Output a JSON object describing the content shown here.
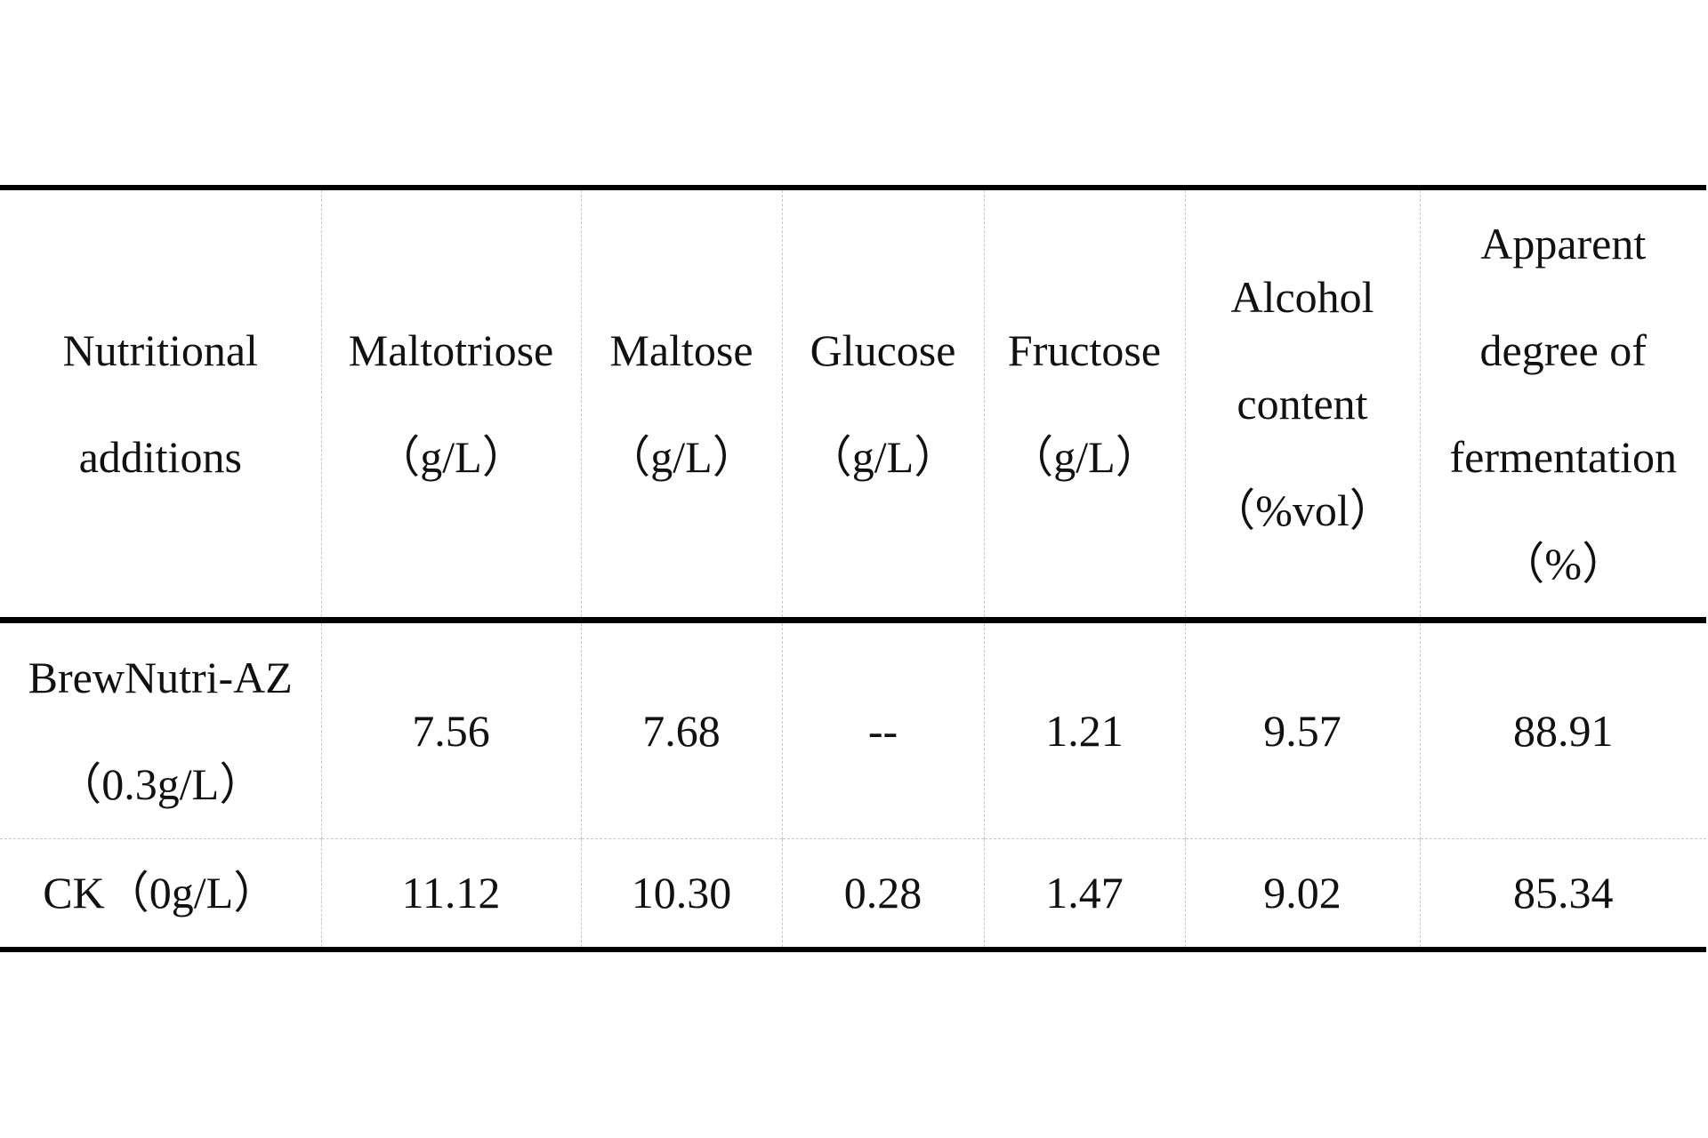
{
  "table": {
    "header": [
      [
        "Nutritional",
        "additions"
      ],
      [
        "Maltotriose",
        "（g/L）"
      ],
      [
        "Maltose",
        "（g/L）"
      ],
      [
        "Glucose",
        "（g/L）"
      ],
      [
        "Fructose",
        "（g/L）"
      ],
      [
        "Alcohol",
        "content",
        "（%vol）"
      ],
      [
        "Apparent",
        "degree of",
        "fermentation",
        "（%）"
      ]
    ],
    "rows": [
      [
        [
          "BrewNutri-AZ",
          "（0.3g/L）"
        ],
        "7.56",
        "7.68",
        "--",
        "1.21",
        "9.57",
        "88.91"
      ],
      [
        [
          "CK（0g/L）"
        ],
        "11.12",
        "10.30",
        "0.28",
        "1.47",
        "9.02",
        "85.34"
      ]
    ]
  }
}
